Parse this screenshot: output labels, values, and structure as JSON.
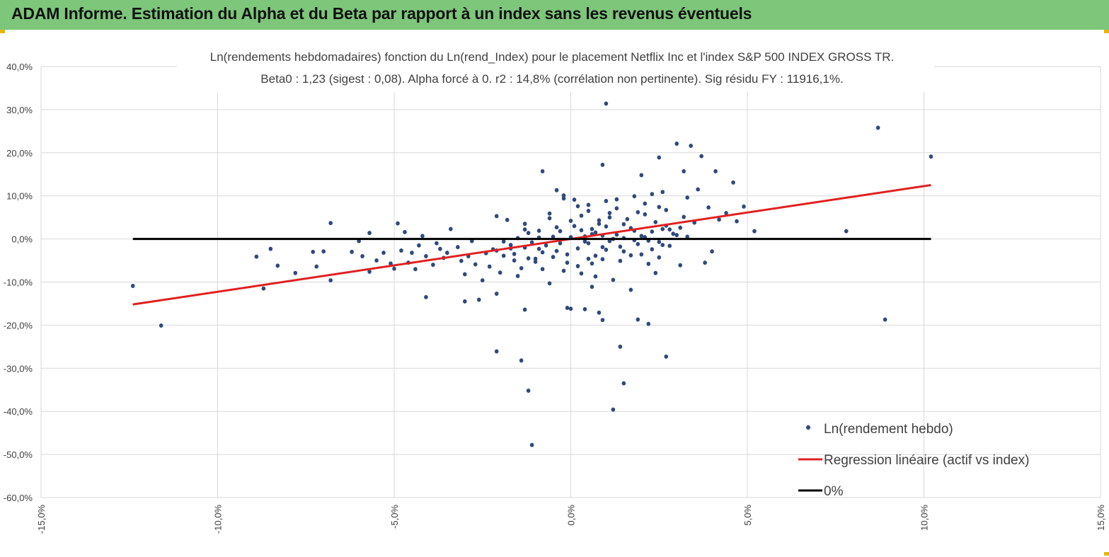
{
  "header": {
    "title": "ADAM Informe. Estimation du Alpha et du Beta par rapport à un index sans les revenus éventuels",
    "background": "#7dc67a"
  },
  "chart_data": {
    "type": "scatter",
    "title_lines": [
      "Ln(rendements hebdomadaires) fonction du Ln(rend_Index) pour le placement Netflix Inc et l'index S&P 500 INDEX GROSS TR.",
      "Beta0 : 1,23 (sigest : 0,08). Alpha forcé à 0. r2 : 14,8% (corrélation non pertinente). Sig résidu FY : 11916,1%."
    ],
    "xlim": [
      -15,
      15
    ],
    "ylim": [
      -60,
      40
    ],
    "x_ticks": [
      -15,
      -10,
      -5,
      0,
      5,
      10,
      15
    ],
    "y_ticks": [
      40,
      30,
      20,
      10,
      0,
      -10,
      -20,
      -30,
      -40,
      -50,
      -60
    ],
    "x_tick_labels": [
      "-15,0%",
      "-10,0%",
      "-5,0%",
      "0,0%",
      "5,0%",
      "10,0%",
      "15,0%"
    ],
    "y_tick_labels": [
      "40,0%",
      "30,0%",
      "20,0%",
      "10,0%",
      "0,0%",
      "-10,0%",
      "-20,0%",
      "-30,0%",
      "-40,0%",
      "-50,0%",
      "-60,0%"
    ],
    "grid": true,
    "legend_position": "bottom-right",
    "series": [
      {
        "name": "Ln(rendement hebdo)",
        "kind": "scatter",
        "color": "#2e4a7d",
        "points": [
          [
            -12.4,
            -10.9
          ],
          [
            -11.6,
            -20.1
          ],
          [
            -8.9,
            -4.1
          ],
          [
            -8.7,
            -11.5
          ],
          [
            -8.5,
            -2.3
          ],
          [
            -8.3,
            -6.2
          ],
          [
            -7.8,
            -7.9
          ],
          [
            -7.3,
            -3.0
          ],
          [
            -7.2,
            -6.4
          ],
          [
            -7.0,
            -2.9
          ],
          [
            -6.8,
            3.7
          ],
          [
            -6.8,
            -9.6
          ],
          [
            -6.2,
            -3.0
          ],
          [
            -6.0,
            -0.5
          ],
          [
            -5.9,
            -4.0
          ],
          [
            -5.7,
            -7.6
          ],
          [
            -5.7,
            1.4
          ],
          [
            -5.5,
            -5.0
          ],
          [
            -5.3,
            -3.2
          ],
          [
            -5.1,
            -5.7
          ],
          [
            -5.0,
            -6.9
          ],
          [
            -4.9,
            3.6
          ],
          [
            -4.8,
            -2.7
          ],
          [
            -4.7,
            1.6
          ],
          [
            -4.6,
            -5.5
          ],
          [
            -4.5,
            -3.2
          ],
          [
            -4.4,
            -7.0
          ],
          [
            -4.3,
            -1.5
          ],
          [
            -4.2,
            0.7
          ],
          [
            -4.1,
            -13.5
          ],
          [
            -4.1,
            -4.0
          ],
          [
            -3.9,
            -6.0
          ],
          [
            -3.8,
            -1.0
          ],
          [
            -3.7,
            -2.3
          ],
          [
            -3.6,
            -4.4
          ],
          [
            -3.5,
            -3.2
          ],
          [
            -3.4,
            2.3
          ],
          [
            -3.2,
            -1.9
          ],
          [
            -3.1,
            -5.1
          ],
          [
            -3.0,
            -14.5
          ],
          [
            -3.0,
            -8.2
          ],
          [
            -2.9,
            -4.0
          ],
          [
            -2.8,
            -0.5
          ],
          [
            -2.7,
            -5.9
          ],
          [
            -2.6,
            -14.1
          ],
          [
            -2.5,
            -9.6
          ],
          [
            -2.4,
            -3.3
          ],
          [
            -2.3,
            -6.4
          ],
          [
            -2.2,
            -2.4
          ],
          [
            -2.1,
            -12.7
          ],
          [
            -2.1,
            5.3
          ],
          [
            -2.1,
            -26.1
          ],
          [
            -2.0,
            -7.8
          ],
          [
            -1.9,
            -3.9
          ],
          [
            -1.8,
            4.4
          ],
          [
            -1.7,
            -2.2
          ],
          [
            -1.6,
            -5.0
          ],
          [
            -1.5,
            -8.6
          ],
          [
            -1.4,
            -6.8
          ],
          [
            -1.4,
            -28.2
          ],
          [
            -1.3,
            -16.4
          ],
          [
            -1.3,
            2.2
          ],
          [
            -1.3,
            3.5
          ],
          [
            -1.2,
            -35.2
          ],
          [
            -1.2,
            -4.5
          ],
          [
            -1.1,
            -47.8
          ],
          [
            -1.0,
            -4.6
          ],
          [
            -0.9,
            1.9
          ],
          [
            -0.9,
            -2.3
          ],
          [
            -0.8,
            15.7
          ],
          [
            -0.8,
            -7.0
          ],
          [
            -0.6,
            -10.3
          ],
          [
            -0.6,
            5.9
          ],
          [
            -0.5,
            -4.2
          ],
          [
            -0.4,
            -2.8
          ],
          [
            -0.3,
            1.8
          ],
          [
            -0.2,
            -7.4
          ],
          [
            -0.2,
            10.1
          ],
          [
            -0.1,
            -5.5
          ],
          [
            -0.1,
            -16.0
          ],
          [
            0.0,
            -16.2
          ],
          [
            0.0,
            4.2
          ],
          [
            0.1,
            9.1
          ],
          [
            0.2,
            -6.3
          ],
          [
            0.3,
            -8.0
          ],
          [
            0.4,
            0.6
          ],
          [
            0.4,
            -16.3
          ],
          [
            0.5,
            7.9
          ],
          [
            0.5,
            -4.6
          ],
          [
            0.6,
            -11.1
          ],
          [
            0.6,
            2.3
          ],
          [
            0.7,
            -8.7
          ],
          [
            0.8,
            -17.1
          ],
          [
            0.8,
            4.3
          ],
          [
            0.9,
            -18.8
          ],
          [
            0.9,
            17.2
          ],
          [
            0.9,
            -1.9
          ],
          [
            1.0,
            31.4
          ],
          [
            1.0,
            -2.5
          ],
          [
            1.1,
            6.0
          ],
          [
            1.2,
            -39.6
          ],
          [
            1.2,
            -9.5
          ],
          [
            1.3,
            9.2
          ],
          [
            1.4,
            -25.0
          ],
          [
            1.5,
            -33.5
          ],
          [
            1.5,
            3.4
          ],
          [
            1.7,
            -11.8
          ],
          [
            1.8,
            -0.3
          ],
          [
            1.9,
            -18.7
          ],
          [
            2.0,
            14.8
          ],
          [
            2.0,
            -3.6
          ],
          [
            2.1,
            5.7
          ],
          [
            2.2,
            -19.7
          ],
          [
            2.3,
            10.4
          ],
          [
            2.4,
            -7.9
          ],
          [
            2.5,
            7.4
          ],
          [
            2.5,
            18.9
          ],
          [
            2.6,
            -1.4
          ],
          [
            2.7,
            -27.3
          ],
          [
            2.8,
            2.2
          ],
          [
            3.0,
            22.1
          ],
          [
            3.1,
            -6.1
          ],
          [
            3.2,
            15.7
          ],
          [
            3.3,
            9.6
          ],
          [
            3.4,
            21.6
          ],
          [
            3.5,
            4.0
          ],
          [
            3.6,
            11.5
          ],
          [
            3.7,
            19.2
          ],
          [
            3.8,
            -5.5
          ],
          [
            3.9,
            7.3
          ],
          [
            4.0,
            -2.9
          ],
          [
            4.1,
            15.7
          ],
          [
            4.2,
            4.5
          ],
          [
            4.4,
            6.0
          ],
          [
            4.6,
            13.1
          ],
          [
            4.7,
            4.1
          ],
          [
            4.9,
            7.5
          ],
          [
            5.2,
            1.8
          ],
          [
            7.8,
            1.8
          ],
          [
            8.7,
            25.8
          ],
          [
            8.9,
            -18.7
          ],
          [
            10.2,
            19.1
          ],
          [
            -0.2,
            9.4
          ],
          [
            -0.4,
            11.3
          ],
          [
            0.1,
            3.0
          ],
          [
            0.3,
            2.0
          ],
          [
            0.5,
            -1.0
          ],
          [
            0.7,
            1.5
          ],
          [
            0.9,
            0.8
          ],
          [
            1.1,
            -0.5
          ],
          [
            1.3,
            1.0
          ],
          [
            1.5,
            0.2
          ],
          [
            1.7,
            2.5
          ],
          [
            1.9,
            -1.2
          ],
          [
            2.1,
            0.4
          ],
          [
            2.3,
            1.7
          ],
          [
            2.5,
            -0.7
          ],
          [
            2.7,
            3.1
          ],
          [
            2.9,
            1.2
          ],
          [
            3.1,
            2.6
          ],
          [
            3.3,
            0.5
          ],
          [
            3.5,
            3.8
          ],
          [
            -0.3,
            -1.0
          ],
          [
            -0.5,
            0.5
          ],
          [
            -0.7,
            -1.5
          ],
          [
            -0.9,
            0.3
          ],
          [
            -1.1,
            -0.8
          ],
          [
            -1.3,
            -2.0
          ],
          [
            -1.5,
            0.2
          ],
          [
            -1.7,
            -1.4
          ],
          [
            -1.9,
            -0.6
          ],
          [
            -2.1,
            -2.7
          ],
          [
            0.2,
            -2.2
          ],
          [
            0.6,
            1.1
          ],
          [
            1.0,
            2.9
          ],
          [
            1.4,
            -1.8
          ],
          [
            1.8,
            1.9
          ],
          [
            2.2,
            -0.4
          ],
          [
            2.6,
            2.3
          ],
          [
            3.0,
            0.9
          ],
          [
            0.0,
            0.4
          ],
          [
            0.4,
            -0.6
          ],
          [
            0.8,
            3.5
          ],
          [
            1.2,
            0.0
          ],
          [
            1.6,
            4.6
          ],
          [
            2.0,
            0.7
          ],
          [
            2.4,
            3.9
          ],
          [
            2.8,
            -1.6
          ],
          [
            3.2,
            5.1
          ],
          [
            -0.4,
            2.7
          ],
          [
            -0.8,
            -3.1
          ],
          [
            -1.2,
            1.4
          ],
          [
            -1.6,
            -3.5
          ],
          [
            0.3,
            5.4
          ],
          [
            0.7,
            -3.9
          ],
          [
            1.1,
            5.0
          ],
          [
            1.5,
            -2.9
          ],
          [
            1.9,
            6.2
          ],
          [
            2.3,
            -2.4
          ],
          [
            2.7,
            6.7
          ],
          [
            -0.1,
            -3.6
          ],
          [
            0.5,
            6.5
          ],
          [
            0.9,
            -4.7
          ],
          [
            1.3,
            7.1
          ],
          [
            1.7,
            -3.8
          ],
          [
            2.1,
            8.2
          ],
          [
            2.5,
            -4.3
          ],
          [
            -0.6,
            4.8
          ],
          [
            -1.0,
            -5.3
          ],
          [
            0.2,
            7.6
          ],
          [
            0.6,
            -5.7
          ],
          [
            1.0,
            8.8
          ],
          [
            1.4,
            -5.1
          ],
          [
            1.8,
            9.9
          ],
          [
            2.2,
            -5.8
          ],
          [
            2.6,
            10.9
          ]
        ]
      },
      {
        "name": "Regression linéaire (actif vs index)",
        "kind": "line",
        "color": "#e02020",
        "points": [
          [
            -12.4,
            -15.2
          ],
          [
            10.2,
            12.5
          ]
        ]
      },
      {
        "name": "0%",
        "kind": "line",
        "color": "#000000",
        "points": [
          [
            -12.4,
            0
          ],
          [
            10.2,
            0
          ]
        ]
      }
    ]
  }
}
